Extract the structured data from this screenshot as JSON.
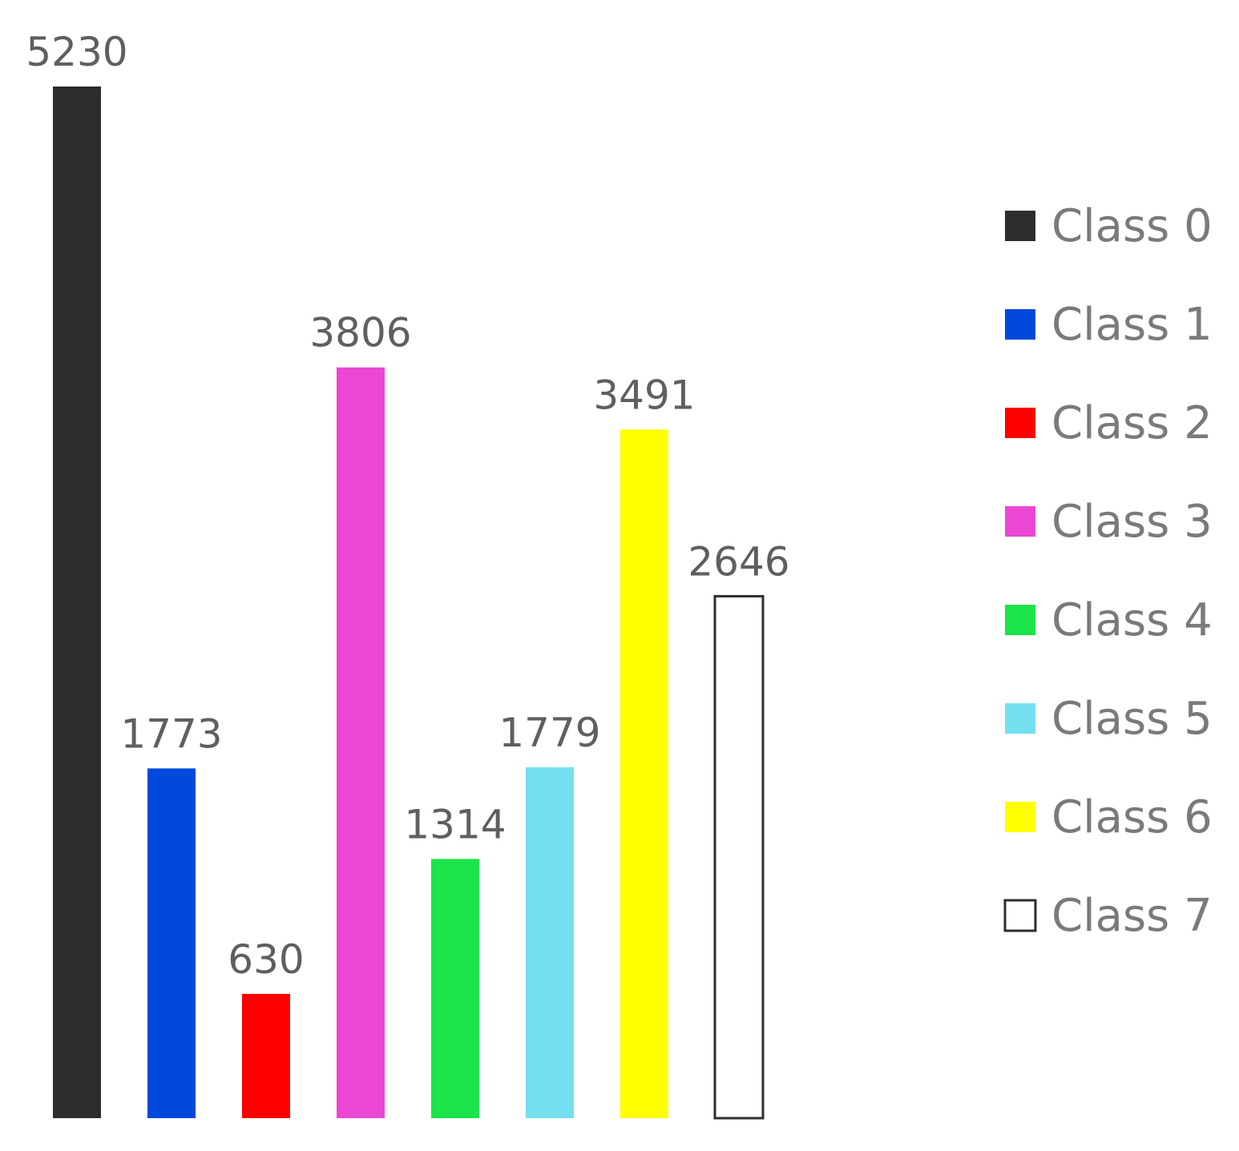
{
  "chart_data": {
    "type": "bar",
    "categories": [
      "Class 0",
      "Class 1",
      "Class 2",
      "Class 3",
      "Class 4",
      "Class 5",
      "Class 6",
      "Class 7"
    ],
    "values": [
      5230,
      1773,
      630,
      3806,
      1314,
      1779,
      3491,
      2646
    ],
    "colors": [
      "#2d2d2d",
      "#0049da",
      "#ff0000",
      "#eb47d3",
      "#1be34a",
      "#73dfef",
      "#ffff00",
      "#ffffff"
    ],
    "outline_color": "#2d2d2d",
    "title": "",
    "xlabel": "",
    "ylabel": "",
    "ylim": [
      0,
      5230
    ],
    "grid": false,
    "axes_visible": false,
    "data_labels": true,
    "legend_position": "right"
  }
}
